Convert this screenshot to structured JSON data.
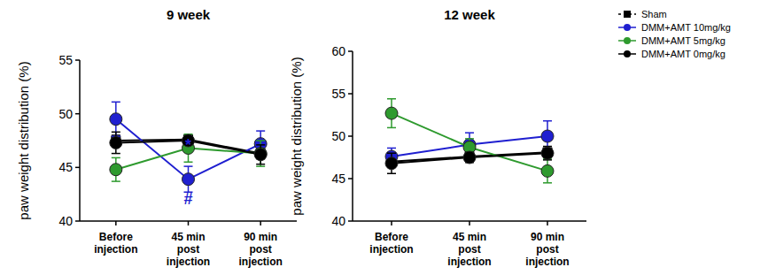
{
  "chart_data": [
    {
      "type": "line",
      "title": "9 week",
      "y_label": "paw weight distribution (%)",
      "categories": [
        "Before injection",
        "45 min post injection",
        "90 min post injection"
      ],
      "ylim": [
        40,
        55
      ],
      "yticks": [
        40,
        45,
        50,
        55
      ],
      "series": [
        {
          "name": "Sham",
          "color": "#000000",
          "marker": "square",
          "values": [
            47.5,
            47.6,
            46.3
          ],
          "errors": [
            0.5,
            0.3,
            0.5
          ]
        },
        {
          "name": "DMM+AMT 10mg/kg",
          "color": "#1f1fd0",
          "marker": "circle",
          "values": [
            49.5,
            43.9,
            47.2
          ],
          "errors": [
            1.6,
            1.2,
            1.2
          ]
        },
        {
          "name": "DMM+AMT 5mg/kg",
          "color": "#2e9a2e",
          "marker": "circle",
          "values": [
            44.8,
            46.8,
            46.3
          ],
          "errors": [
            1.1,
            1.3,
            1.2
          ]
        },
        {
          "name": "DMM+AMT 0mg/kg",
          "color": "#000000",
          "marker": "circle",
          "values": [
            47.3,
            47.5,
            46.2
          ],
          "errors": [
            1.0,
            0.4,
            0.9
          ]
        }
      ],
      "annotations": [
        {
          "text": "*",
          "x": 1,
          "y": 46.6,
          "color": "#1f1fd0"
        },
        {
          "text": "#",
          "x": 1,
          "y": 41.6,
          "color": "#1f1fd0"
        }
      ]
    },
    {
      "type": "line",
      "title": "12 week",
      "y_label": "paw weight distribution (%)",
      "categories": [
        "Before injection",
        "45 min post injection",
        "90 min post injection"
      ],
      "ylim": [
        40,
        60
      ],
      "yticks": [
        40,
        45,
        50,
        55,
        60
      ],
      "legend": "right",
      "series": [
        {
          "name": "Sham",
          "color": "#000000",
          "marker": "square",
          "values": [
            47.0,
            47.6,
            48.1
          ],
          "errors": [
            0.5,
            0.4,
            0.5
          ]
        },
        {
          "name": "DMM+AMT 10mg/kg",
          "color": "#1f1fd0",
          "marker": "circle",
          "values": [
            47.6,
            49.0,
            50.0
          ],
          "errors": [
            1.0,
            1.4,
            1.8
          ]
        },
        {
          "name": "DMM+AMT 5mg/kg",
          "color": "#2e9a2e",
          "marker": "circle",
          "values": [
            52.7,
            48.7,
            45.9
          ],
          "errors": [
            1.7,
            1.0,
            1.4
          ]
        },
        {
          "name": "DMM+AMT 0mg/kg",
          "color": "#000000",
          "marker": "circle",
          "values": [
            46.8,
            47.5,
            48.0
          ],
          "errors": [
            1.2,
            0.6,
            0.8
          ]
        }
      ]
    }
  ]
}
